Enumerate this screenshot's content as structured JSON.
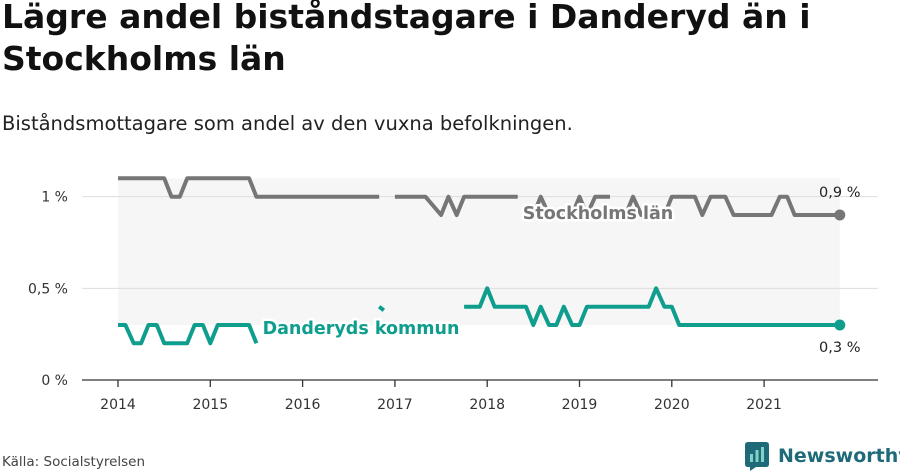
{
  "title": "Lägre andel biståndstagare i Danderyd än i Stockholms län",
  "subtitle": "Biståndsmottagare som andel av den vuxna befolkningen.",
  "source": "Källa: Socialstyrelsen",
  "brand": {
    "name": "Newsworthy",
    "icon": "newsworthy-logo-icon"
  },
  "colors": {
    "stockholm": "#767676",
    "danderyd": "#0f9e8e",
    "band": "#f6f6f6",
    "grid": "#dddddd",
    "axis": "#333333"
  },
  "chart_data": {
    "type": "line",
    "title": "Lägre andel biståndstagare i Danderyd än i Stockholms län",
    "subtitle": "Biståndsmottagare som andel av den vuxna befolkningen.",
    "xlabel": "",
    "ylabel": "",
    "xlim": [
      2014,
      2021.82
    ],
    "ylim": [
      0,
      1.2
    ],
    "x_ticks": [
      2014,
      2015,
      2016,
      2017,
      2018,
      2019,
      2020,
      2021
    ],
    "x_tick_labels": [
      "2014",
      "2015",
      "2016",
      "2017",
      "2018",
      "2019",
      "2020",
      "2021"
    ],
    "y_ticks": [
      0,
      0.5,
      1
    ],
    "y_tick_labels": [
      "0 %",
      "0,5 %",
      "1 %"
    ],
    "grid": true,
    "legend": "inline labels",
    "series": [
      {
        "name": "Stockholms län",
        "end_label": "0,9 %",
        "points": [
          [
            2014.0,
            1.1
          ],
          [
            2014.5,
            1.1
          ],
          [
            2014.58,
            1.0
          ],
          [
            2014.67,
            1.0
          ],
          [
            2014.75,
            1.1
          ],
          [
            2015.0,
            1.1
          ],
          [
            2015.42,
            1.1
          ],
          [
            2015.5,
            1.0
          ],
          [
            2016.0,
            1.0
          ],
          [
            2016.83,
            1.0
          ],
          null,
          [
            2017.0,
            1.0
          ],
          [
            2017.33,
            1.0
          ],
          [
            2017.5,
            0.9
          ],
          [
            2017.58,
            1.0
          ],
          [
            2017.67,
            0.9
          ],
          [
            2017.75,
            1.0
          ],
          [
            2018.0,
            1.0
          ],
          [
            2018.33,
            1.0
          ],
          null,
          [
            2018.42,
            0.9
          ],
          [
            2018.5,
            0.9
          ],
          [
            2018.58,
            1.0
          ],
          [
            2018.67,
            0.9
          ],
          [
            2018.92,
            0.9
          ],
          [
            2019.0,
            1.0
          ],
          [
            2019.08,
            0.9
          ],
          [
            2019.17,
            1.0
          ],
          [
            2019.33,
            1.0
          ],
          null,
          [
            2019.5,
            0.9
          ],
          [
            2019.58,
            1.0
          ],
          [
            2019.67,
            0.9
          ],
          [
            2019.92,
            0.9
          ],
          [
            2020.0,
            1.0
          ],
          [
            2020.25,
            1.0
          ],
          [
            2020.33,
            0.9
          ],
          [
            2020.42,
            1.0
          ],
          [
            2020.58,
            1.0
          ],
          [
            2020.67,
            0.9
          ],
          [
            2021.08,
            0.9
          ],
          [
            2021.17,
            1.0
          ],
          [
            2021.25,
            1.0
          ],
          [
            2021.33,
            0.9
          ],
          [
            2021.82,
            0.9
          ]
        ]
      },
      {
        "name": "Danderyds kommun",
        "end_label": "0,3 %",
        "points": [
          [
            2014.0,
            0.3
          ],
          [
            2014.08,
            0.3
          ],
          [
            2014.17,
            0.2
          ],
          [
            2014.25,
            0.2
          ],
          [
            2014.33,
            0.3
          ],
          [
            2014.42,
            0.3
          ],
          [
            2014.5,
            0.2
          ],
          [
            2014.75,
            0.2
          ],
          [
            2014.83,
            0.3
          ],
          [
            2014.92,
            0.3
          ],
          [
            2015.0,
            0.2
          ],
          [
            2015.08,
            0.3
          ],
          [
            2015.42,
            0.3
          ],
          [
            2015.5,
            0.2
          ],
          null,
          [
            2016.83,
            0.4
          ],
          [
            2016.88,
            0.38
          ],
          null,
          [
            2017.75,
            0.4
          ],
          [
            2017.92,
            0.4
          ],
          [
            2018.0,
            0.5
          ],
          [
            2018.08,
            0.4
          ],
          [
            2018.42,
            0.4
          ],
          [
            2018.5,
            0.3
          ],
          [
            2018.58,
            0.4
          ],
          [
            2018.67,
            0.3
          ],
          [
            2018.75,
            0.3
          ],
          [
            2018.83,
            0.4
          ],
          [
            2018.92,
            0.3
          ],
          [
            2019.0,
            0.3
          ],
          [
            2019.08,
            0.4
          ],
          [
            2019.75,
            0.4
          ],
          [
            2019.83,
            0.5
          ],
          [
            2019.92,
            0.4
          ],
          [
            2020.0,
            0.4
          ],
          [
            2020.08,
            0.3
          ],
          [
            2021.82,
            0.3
          ]
        ]
      }
    ]
  }
}
